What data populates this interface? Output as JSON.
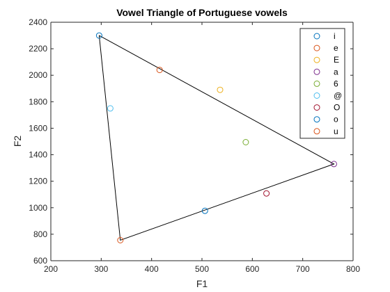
{
  "chart_data": {
    "type": "scatter",
    "title": "Vowel Triangle of Portuguese vowels",
    "xlabel": "F1",
    "ylabel": "F2",
    "xlim": [
      200,
      800
    ],
    "ylim": [
      600,
      2400
    ],
    "xticks": [
      200,
      300,
      400,
      500,
      600,
      700,
      800
    ],
    "yticks": [
      600,
      800,
      1000,
      1200,
      1400,
      1600,
      1800,
      2000,
      2200,
      2400
    ],
    "grid": false,
    "legend_position": "top-right",
    "series": [
      {
        "name": "i",
        "color": "#0072BD",
        "x": [
          296
        ],
        "y": [
          2300
        ]
      },
      {
        "name": "e",
        "color": "#D95319",
        "x": [
          416
        ],
        "y": [
          2040
        ]
      },
      {
        "name": "E",
        "color": "#EDB120",
        "x": [
          536
        ],
        "y": [
          1890
        ]
      },
      {
        "name": "a",
        "color": "#7E2F8E",
        "x": [
          762
        ],
        "y": [
          1330
        ]
      },
      {
        "name": "6",
        "color": "#77AC30",
        "x": [
          587
        ],
        "y": [
          1495
        ]
      },
      {
        "name": "@",
        "color": "#4DBEEE",
        "x": [
          318
        ],
        "y": [
          1750
        ]
      },
      {
        "name": "O",
        "color": "#A2142F",
        "x": [
          628
        ],
        "y": [
          1108
        ]
      },
      {
        "name": "o",
        "color": "#0072BD",
        "x": [
          506
        ],
        "y": [
          977
        ]
      },
      {
        "name": "u",
        "color": "#D95319",
        "x": [
          338
        ],
        "y": [
          755
        ]
      }
    ],
    "triangle": {
      "color": "#000000",
      "x": [
        296,
        762,
        338,
        296
      ],
      "y": [
        2300,
        1330,
        755,
        2300
      ]
    }
  }
}
